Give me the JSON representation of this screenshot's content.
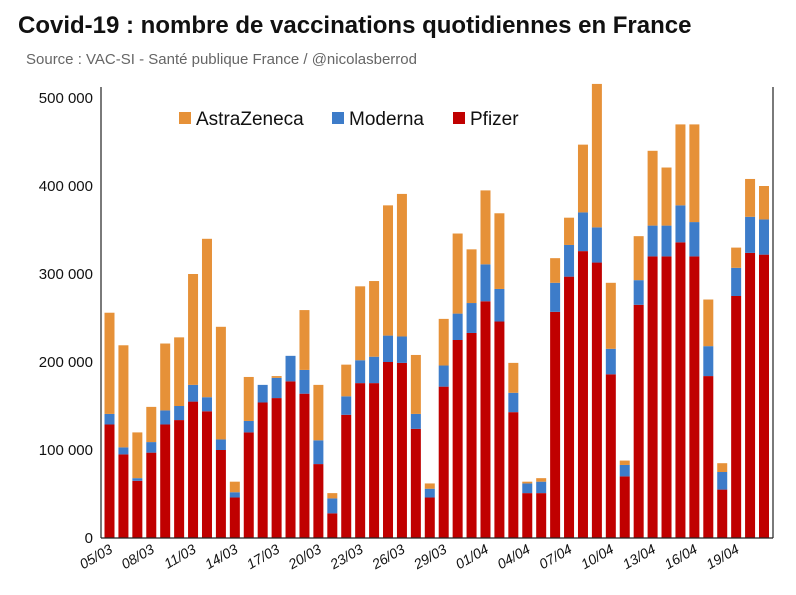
{
  "header": {
    "title": "Covid-19 : nombre de vaccinations quotidiennes en France",
    "subtitle": "Source : VAC-SI - Santé publique France / @nicolasberrod"
  },
  "chart_data": {
    "type": "bar",
    "stacked": true,
    "title": "Covid-19 : nombre de vaccinations quotidiennes en France",
    "subtitle": "Source : VAC-SI - Santé publique France / @nicolasberrod",
    "xlabel": "",
    "ylabel": "",
    "ylim": [
      0,
      500000
    ],
    "yticks": [
      0,
      100000,
      200000,
      300000,
      400000,
      500000
    ],
    "ytick_labels": [
      "0",
      "100 000",
      "200 000",
      "300 000",
      "400 000",
      "500 000"
    ],
    "grid": false,
    "legend_position": "top-left",
    "categories": [
      "05/03",
      "06/03",
      "07/03",
      "08/03",
      "09/03",
      "10/03",
      "11/03",
      "12/03",
      "13/03",
      "14/03",
      "15/03",
      "16/03",
      "17/03",
      "18/03",
      "19/03",
      "20/03",
      "21/03",
      "22/03",
      "23/03",
      "24/03",
      "25/03",
      "26/03",
      "27/03",
      "28/03",
      "29/03",
      "30/03",
      "31/03",
      "01/04",
      "02/04",
      "03/04",
      "04/04",
      "05/04",
      "06/04",
      "07/04",
      "08/04",
      "09/04",
      "10/04",
      "11/04",
      "12/04",
      "13/04",
      "14/04",
      "15/04",
      "16/04",
      "17/04",
      "18/04",
      "19/04",
      "20/04",
      "21/04"
    ],
    "xtick_labels": [
      "05/03",
      "",
      "",
      "08/03",
      "",
      "",
      "11/03",
      "",
      "",
      "14/03",
      "",
      "",
      "17/03",
      "",
      "",
      "20/03",
      "",
      "",
      "23/03",
      "",
      "",
      "26/03",
      "",
      "",
      "29/03",
      "",
      "",
      "01/04",
      "",
      "",
      "04/04",
      "",
      "",
      "07/04",
      "",
      "",
      "10/04",
      "",
      "",
      "13/04",
      "",
      "",
      "16/04",
      "",
      "",
      "19/04",
      "",
      ""
    ],
    "series": [
      {
        "name": "Pfizer",
        "color": "#c00000",
        "values": [
          129000,
          95000,
          65000,
          97000,
          129000,
          134000,
          155000,
          144000,
          100000,
          46000,
          120000,
          154000,
          159000,
          178000,
          164000,
          84000,
          28000,
          140000,
          176000,
          176000,
          200000,
          199000,
          124000,
          46000,
          172000,
          225000,
          233000,
          269000,
          246000,
          143000,
          51000,
          51000,
          257000,
          297000,
          326000,
          313000,
          186000,
          70000,
          265000,
          320000,
          320000,
          336000,
          320000,
          184000,
          55000,
          275000,
          324000,
          322000
        ]
      },
      {
        "name": "Moderna",
        "color": "#3d7cc9",
        "values": [
          12000,
          8000,
          3000,
          12000,
          16000,
          16000,
          19000,
          16000,
          12000,
          6000,
          13000,
          20000,
          23000,
          29000,
          27000,
          27000,
          17000,
          21000,
          26000,
          30000,
          30000,
          30000,
          17000,
          10000,
          24000,
          30000,
          34000,
          42000,
          37000,
          22000,
          11000,
          13000,
          33000,
          36000,
          44000,
          40000,
          29000,
          13000,
          28000,
          35000,
          35000,
          42000,
          39000,
          34000,
          20000,
          32000,
          41000,
          40000
        ]
      },
      {
        "name": "AstraZeneca",
        "color": "#e69138",
        "values": [
          115000,
          116000,
          52000,
          40000,
          76000,
          78000,
          126000,
          180000,
          128000,
          12000,
          50000,
          0,
          2000,
          0,
          68000,
          63000,
          6000,
          36000,
          84000,
          86000,
          148000,
          162000,
          67000,
          6000,
          53000,
          91000,
          61000,
          84000,
          86000,
          34000,
          2000,
          4000,
          28000,
          31000,
          77000,
          163000,
          75000,
          5000,
          50000,
          85000,
          66000,
          92000,
          111000,
          53000,
          10000,
          23000,
          43000,
          38000
        ]
      }
    ],
    "legend": [
      "AstraZeneca",
      "Moderna",
      "Pfizer"
    ]
  }
}
